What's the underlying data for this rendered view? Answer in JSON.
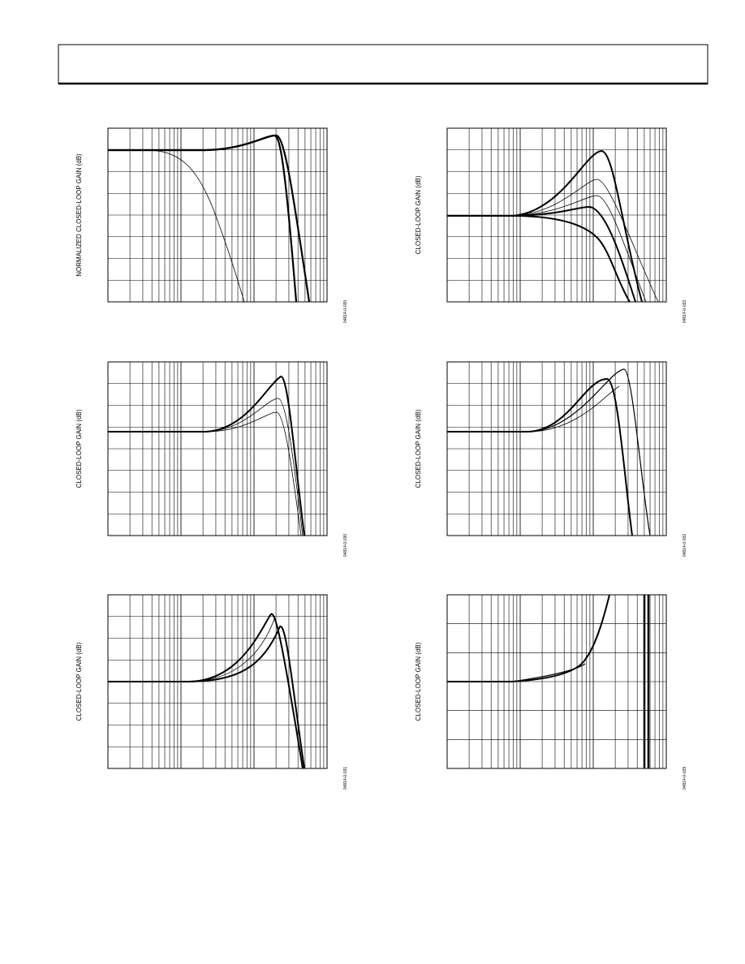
{
  "figures": [
    {
      "y_axis_label": "NORMALIZED CLOSED-LOOP GAIN (dB)",
      "figure_code": "04814-0-030"
    },
    {
      "y_axis_label": "CLOSED-LOOP GAIN (dB)",
      "figure_code": "04814-0-033"
    },
    {
      "y_axis_label": "CLOSED-LOOP GAIN (dB)",
      "figure_code": "04814-0-030"
    },
    {
      "y_axis_label": "CLOSED-LOOP GAIN (dB)",
      "figure_code": "04814-0-032"
    },
    {
      "y_axis_label": "CLOSED-LOOP GAIN (dB)",
      "figure_code": "04814-0-031"
    },
    {
      "y_axis_label": "CLOSED-LOOP GAIN (dB)",
      "figure_code": "04814-0-029"
    }
  ]
}
